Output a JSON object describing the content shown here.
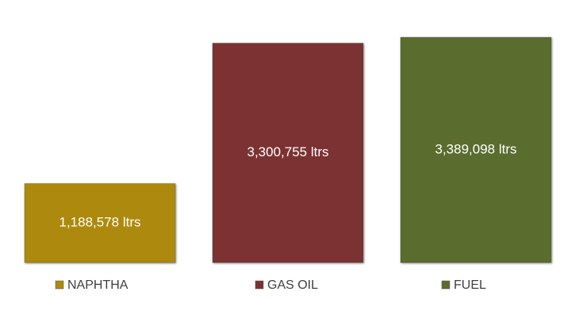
{
  "chart_data": {
    "type": "bar",
    "series": [
      {
        "name": "NAPHTHA",
        "color": "#ad8a07",
        "values": [
          1188578
        ],
        "value_labels": [
          "1,188,578 ltrs"
        ]
      },
      {
        "name": "GAS OIL",
        "color": "#7c3131",
        "values": [
          3300755
        ],
        "value_labels": [
          "3,300,755 ltrs"
        ]
      },
      {
        "name": "FUEL",
        "color": "#5a6d2e",
        "values": [
          3389098
        ],
        "value_labels": [
          "3,389,098 ltrs"
        ]
      }
    ]
  }
}
